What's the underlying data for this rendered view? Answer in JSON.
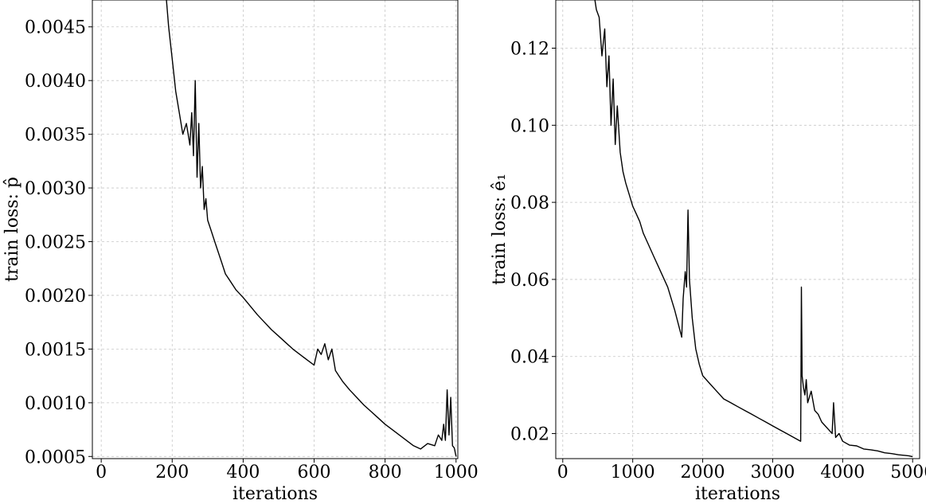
{
  "chart_data": [
    {
      "type": "line",
      "title": "",
      "xlabel": "iterations",
      "ylabel": "train loss: p̂",
      "xlim": [
        -25,
        1005
      ],
      "ylim": [
        0.00048,
        0.00475
      ],
      "xticks": [
        0,
        200,
        400,
        600,
        800,
        1000
      ],
      "xtick_labels": [
        "0",
        "200",
        "400",
        "600",
        "800",
        "1000"
      ],
      "yticks": [
        0.0005,
        0.001,
        0.0015,
        0.002,
        0.0025,
        0.003,
        0.0035,
        0.004,
        0.0045
      ],
      "ytick_labels": [
        "0.0005",
        "0.0010",
        "0.0015",
        "0.0020",
        "0.0025",
        "0.0030",
        "0.0035",
        "0.0040",
        "0.0045"
      ],
      "grid": true,
      "series": [
        {
          "color": "#000000",
          "x": [
            180,
            190,
            200,
            210,
            220,
            230,
            240,
            250,
            255,
            260,
            265,
            270,
            275,
            280,
            285,
            290,
            295,
            300,
            310,
            320,
            330,
            340,
            350,
            360,
            380,
            400,
            420,
            440,
            460,
            480,
            500,
            520,
            540,
            560,
            580,
            600,
            610,
            620,
            630,
            640,
            650,
            660,
            670,
            680,
            700,
            720,
            740,
            760,
            780,
            800,
            820,
            840,
            860,
            880,
            900,
            920,
            940,
            950,
            960,
            965,
            970,
            975,
            980,
            985,
            990,
            995,
            1000
          ],
          "y": [
            0.0049,
            0.0045,
            0.0042,
            0.0039,
            0.0037,
            0.0035,
            0.0036,
            0.0034,
            0.0037,
            0.0033,
            0.004,
            0.0031,
            0.0036,
            0.003,
            0.0032,
            0.0028,
            0.0029,
            0.0027,
            0.0026,
            0.0025,
            0.0024,
            0.0023,
            0.0022,
            0.00215,
            0.00205,
            0.00198,
            0.0019,
            0.00182,
            0.00175,
            0.00168,
            0.00162,
            0.00156,
            0.0015,
            0.00145,
            0.0014,
            0.00135,
            0.0015,
            0.00145,
            0.00155,
            0.0014,
            0.0015,
            0.0013,
            0.00125,
            0.0012,
            0.00112,
            0.00105,
            0.00098,
            0.00092,
            0.00086,
            0.0008,
            0.00075,
            0.0007,
            0.00065,
            0.0006,
            0.00057,
            0.00062,
            0.0006,
            0.0007,
            0.00065,
            0.0008,
            0.00065,
            0.00112,
            0.0007,
            0.00105,
            0.0006,
            0.00058,
            0.0005
          ]
        }
      ]
    },
    {
      "type": "line",
      "title": "",
      "xlabel": "iterations",
      "ylabel": "train loss: ê₁",
      "xlim": [
        -100,
        5100
      ],
      "ylim": [
        0.0135,
        0.1325
      ],
      "xticks": [
        0,
        1000,
        2000,
        3000,
        4000,
        5000
      ],
      "xtick_labels": [
        "0",
        "1000",
        "2000",
        "3000",
        "4000",
        "5000"
      ],
      "yticks": [
        0.02,
        0.04,
        0.06,
        0.08,
        0.1,
        0.12
      ],
      "ytick_labels": [
        "0.02",
        "0.04",
        "0.06",
        "0.08",
        "0.10",
        "0.12"
      ],
      "grid": true,
      "series": [
        {
          "color": "#000000",
          "x": [
            430,
            480,
            520,
            560,
            600,
            630,
            660,
            690,
            720,
            750,
            780,
            820,
            860,
            900,
            950,
            1000,
            1050,
            1100,
            1150,
            1200,
            1300,
            1400,
            1500,
            1600,
            1700,
            1720,
            1750,
            1770,
            1790,
            1810,
            1850,
            1900,
            1950,
            2000,
            2100,
            2200,
            2300,
            2400,
            2500,
            2600,
            2700,
            2800,
            2900,
            3000,
            3100,
            3200,
            3300,
            3400,
            3410,
            3420,
            3440,
            3460,
            3480,
            3500,
            3550,
            3600,
            3650,
            3700,
            3750,
            3800,
            3850,
            3870,
            3900,
            3950,
            4000,
            4100,
            4200,
            4300,
            4400,
            4500,
            4600,
            4700,
            4800,
            4900,
            4950,
            5000
          ],
          "y": [
            0.136,
            0.13,
            0.128,
            0.118,
            0.125,
            0.11,
            0.118,
            0.1,
            0.112,
            0.095,
            0.105,
            0.093,
            0.088,
            0.085,
            0.082,
            0.079,
            0.077,
            0.075,
            0.072,
            0.07,
            0.066,
            0.062,
            0.058,
            0.052,
            0.045,
            0.055,
            0.062,
            0.058,
            0.078,
            0.06,
            0.05,
            0.042,
            0.038,
            0.035,
            0.033,
            0.031,
            0.029,
            0.028,
            0.027,
            0.026,
            0.025,
            0.024,
            0.023,
            0.022,
            0.021,
            0.02,
            0.019,
            0.018,
            0.058,
            0.035,
            0.032,
            0.03,
            0.034,
            0.028,
            0.031,
            0.026,
            0.025,
            0.023,
            0.022,
            0.021,
            0.02,
            0.028,
            0.019,
            0.02,
            0.018,
            0.017,
            0.0168,
            0.016,
            0.0158,
            0.0155,
            0.015,
            0.0148,
            0.0145,
            0.0143,
            0.0142,
            0.014
          ]
        }
      ]
    }
  ]
}
